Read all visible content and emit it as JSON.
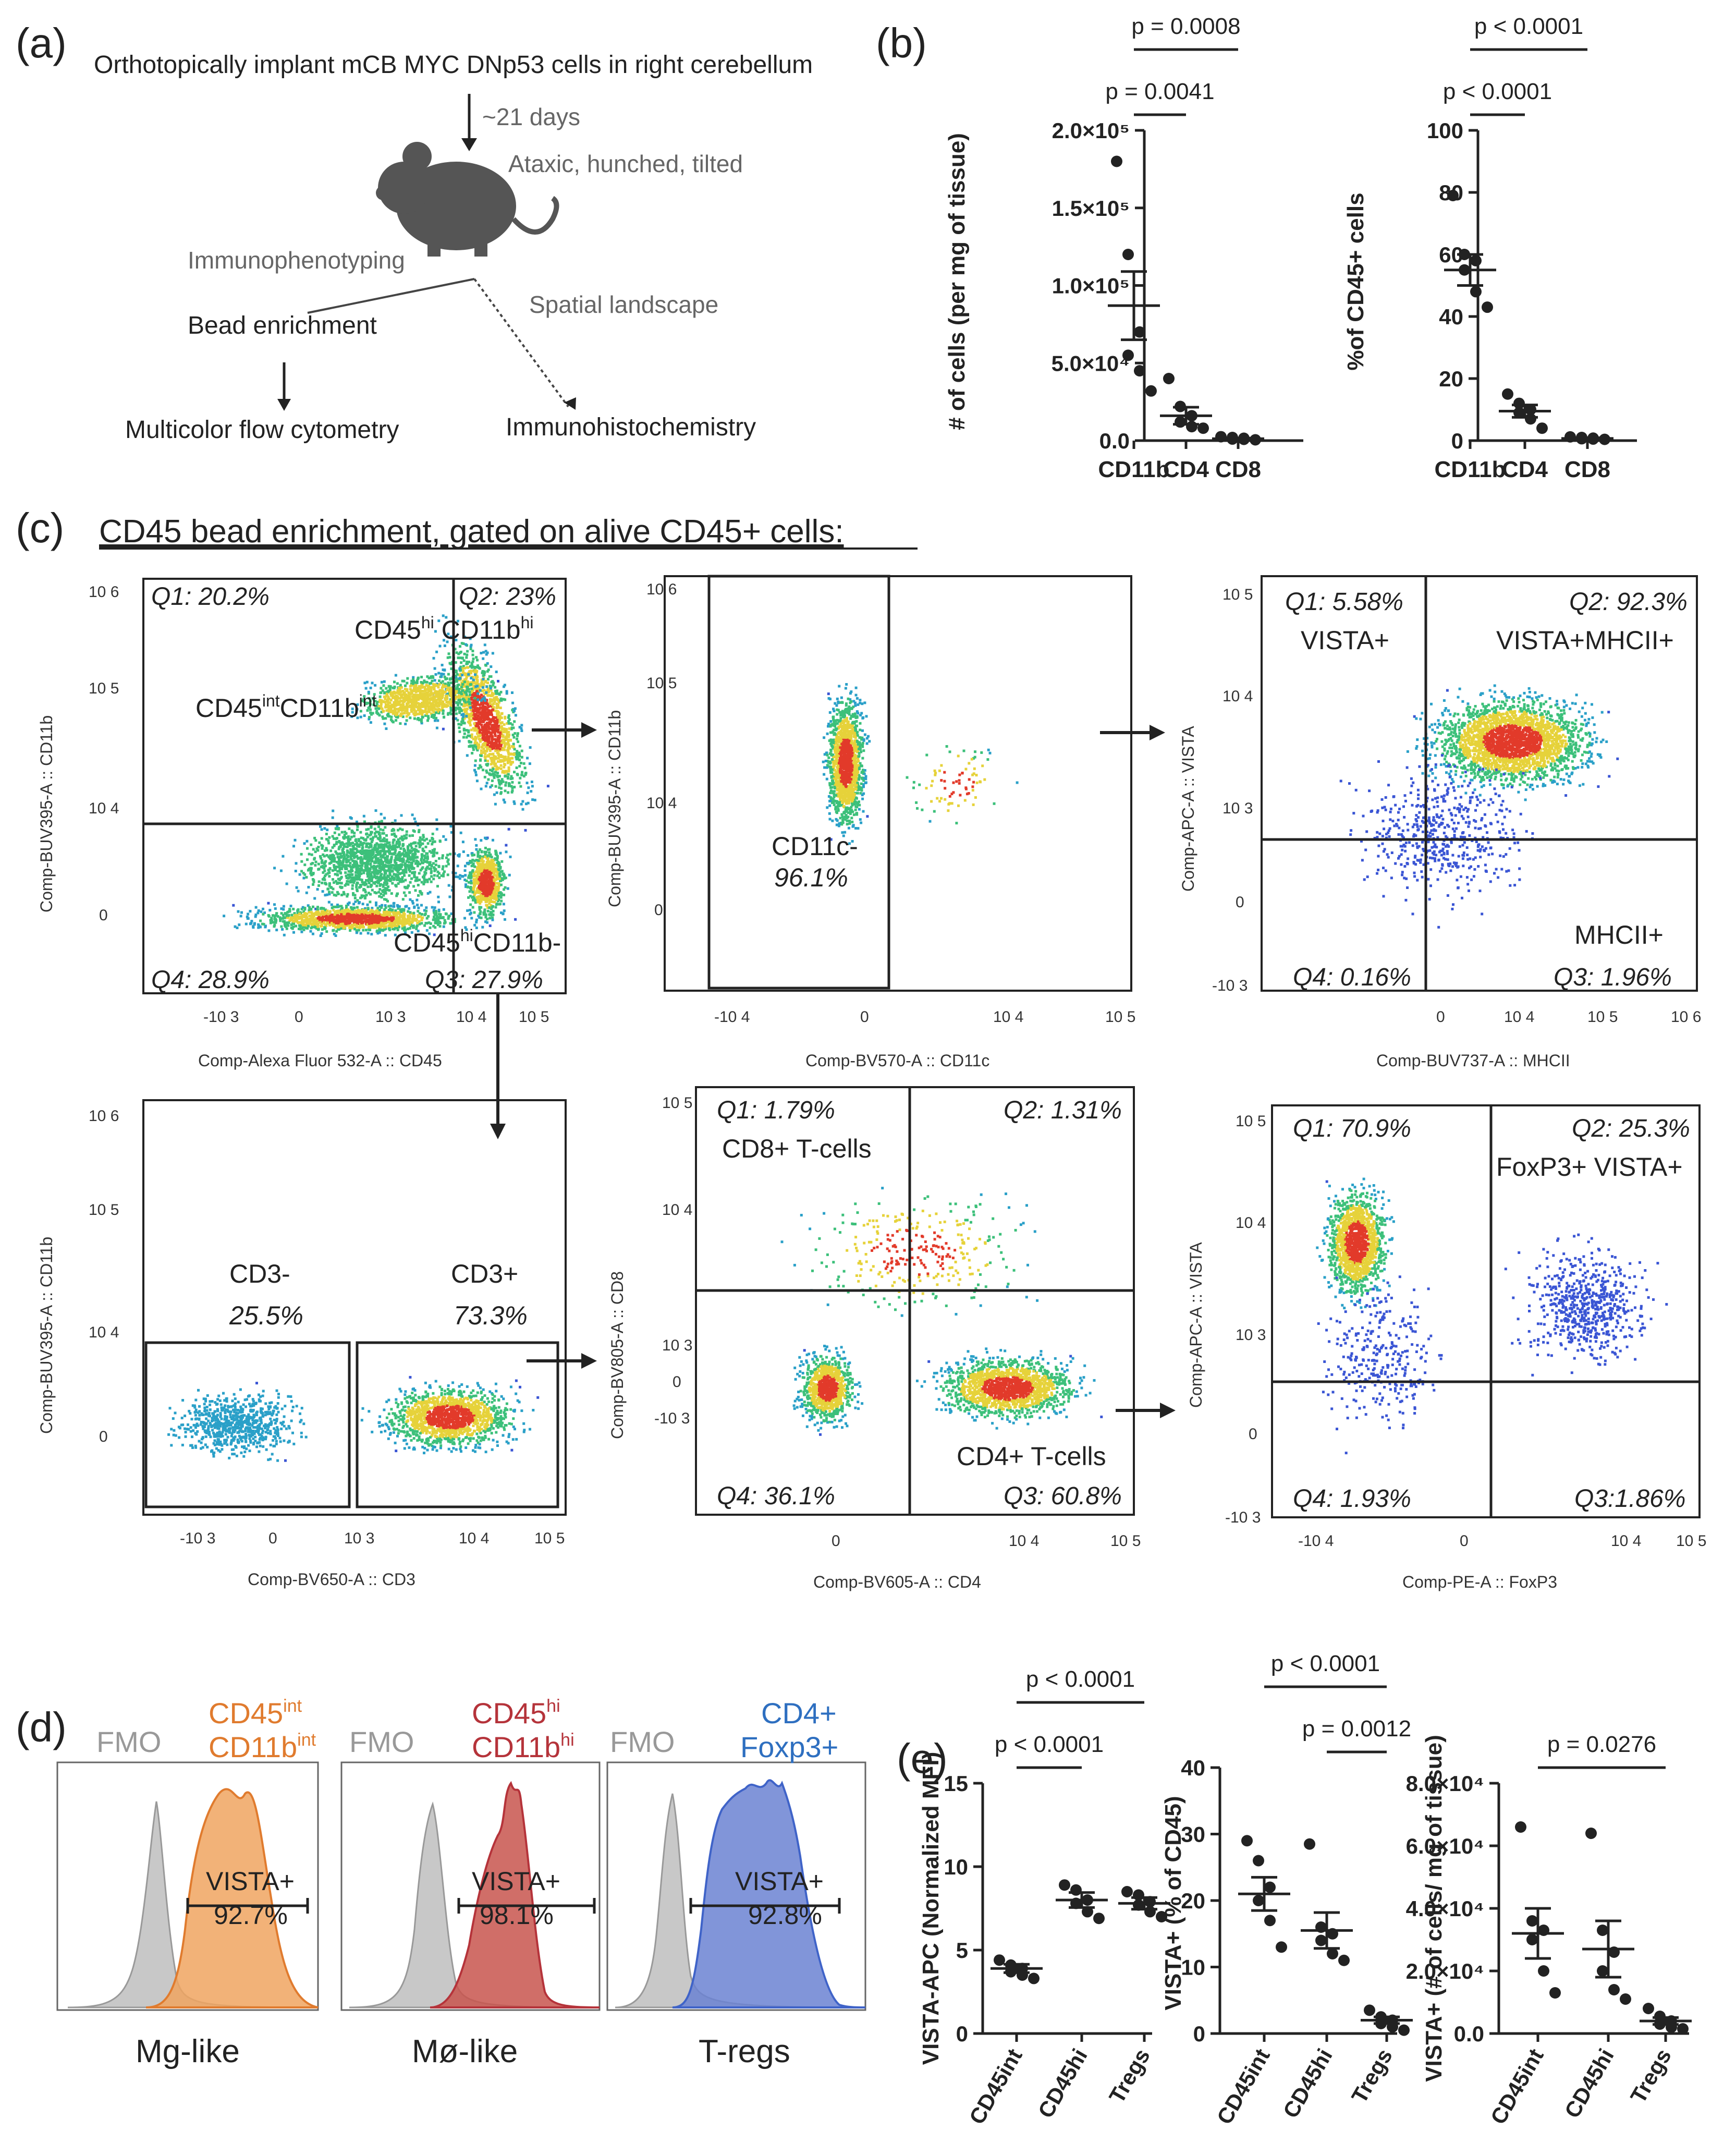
{
  "panel_labels": {
    "a": "(a)",
    "b": "(b)",
    "c": "(c)",
    "d": "(d)",
    "e": "(e)"
  },
  "panel_a": {
    "step1": "Orthotopically implant mCB MYC DNp53 cells in right cerebellum",
    "days": "~21 days",
    "symptoms": "Ataxic, hunched, tilted",
    "immuno": "Immunophenotyping",
    "bead": "Bead enrichment",
    "spatial": "Spatial landscape",
    "flow": "Multicolor flow cytometry",
    "ihc": "Immunohistochemistry"
  },
  "panel_c_title": "CD45 bead enrichment, gated on alive CD45+ cells:",
  "colors": {
    "dot": "#222222",
    "mg": "#e07b2e",
    "mo": "#b5333a",
    "treg": "#3f63c8",
    "fmo": "#bdbdbd",
    "tregtext": "#2e6fc0"
  },
  "flow_plots": {
    "p1": {
      "q1": "Q1: 20.2%",
      "q2": "Q2: 23%",
      "q3": "Q3: 27.9%",
      "q4": "Q4: 28.9%",
      "pop1_main": "CD45",
      "pop1_sup1": "hi",
      "pop1_mid": " CD11b",
      "pop1_sup2": "hi",
      "pop2_main": "CD45",
      "pop2_sup1": "int",
      "pop2_mid": "CD11b",
      "pop2_sup2": "int",
      "pop3_main": "CD45",
      "pop3_sup1": "hi",
      "pop3_mid": "CD11b-",
      "xtitle": "Comp-Alexa Fluor 532-A :: CD45",
      "ytitle": "Comp-BUV395-A :: CD11b",
      "xticks": [
        "-10 3",
        "0",
        "10 3",
        "10 4",
        "10 5"
      ],
      "yticks": [
        "10 6",
        "10 5",
        "10 4",
        "0"
      ]
    },
    "p2": {
      "gate": "CD11c-",
      "pct": "96.1%",
      "xtitle": "Comp-BV570-A :: CD11c",
      "ytitle": "Comp-BUV395-A :: CD11b",
      "xticks": [
        "-10 4",
        "0",
        "10 4",
        "10 5"
      ],
      "yticks": [
        "10 6",
        "10 5",
        "10 4",
        "0"
      ]
    },
    "p3": {
      "q1": "Q1: 5.58%",
      "q2": "Q2: 92.3%",
      "q3": "Q3: 1.96%",
      "q4": "Q4: 0.16%",
      "l1": "VISTA+",
      "l2": "VISTA+MHCII+",
      "l3": "MHCII+",
      "xtitle": "Comp-BUV737-A :: MHCII",
      "ytitle": "Comp-APC-A :: VISTA",
      "xticks": [
        "0",
        "10 4",
        "10 5",
        "10 6"
      ],
      "yticks": [
        "10 5",
        "10 4",
        "10 3",
        "0",
        "-10 3"
      ]
    },
    "p4": {
      "g1": "CD3-",
      "g1pct": "25.5%",
      "g2": "CD3+",
      "g2pct": "73.3%",
      "xtitle": "Comp-BV650-A :: CD3",
      "ytitle": "Comp-BUV395-A :: CD11b",
      "xticks": [
        "-10 3",
        "0",
        "10 3",
        "10 4",
        "10 5"
      ],
      "yticks": [
        "10 6",
        "10 5",
        "10 4",
        "0"
      ]
    },
    "p5": {
      "q1": "Q1: 1.79%",
      "q2": "Q2: 1.31%",
      "q3": "Q3: 60.8%",
      "q4": "Q4: 36.1%",
      "l1": "CD8+ T-cells",
      "l2": "CD4+ T-cells",
      "xtitle": "Comp-BV605-A :: CD4",
      "ytitle": "Comp-BV805-A :: CD8",
      "xticks": [
        "0",
        "10 4",
        "10 5"
      ],
      "yticks": [
        "10 5",
        "10 4",
        "10 3",
        "0",
        "-10 3"
      ]
    },
    "p6": {
      "q1": "Q1: 70.9%",
      "q2": "Q2: 25.3%",
      "q3": "Q3:1.86%",
      "q4": "Q4: 1.93%",
      "l1": "FoxP3+ VISTA+",
      "xtitle": "Comp-PE-A :: FoxP3",
      "ytitle": "Comp-APC-A :: VISTA",
      "xticks": [
        "-10 4",
        "0",
        "10 4",
        "10 5"
      ],
      "yticks": [
        "10 5",
        "10 4",
        "10 3",
        "0",
        "-10 3"
      ]
    }
  },
  "histograms": [
    {
      "fmo": "FMO",
      "pop_l1": "CD45",
      "pop_s1": "int",
      "pop_l2": "CD11b",
      "pop_s2": "int",
      "gate": "VISTA+",
      "pct": "92.7%",
      "label": "Mg-like"
    },
    {
      "fmo": "FMO",
      "pop_l1": "CD45",
      "pop_s1": "hi",
      "pop_l2": "CD11b",
      "pop_s2": "hi",
      "gate": "VISTA+",
      "pct": "98.1%",
      "label": "Mø-like"
    },
    {
      "fmo": "FMO",
      "pop_l1": "CD4+",
      "pop_s1": "",
      "pop_l2": "Foxp3+",
      "pop_s2": "",
      "gate": "VISTA+",
      "pct": "92.8%",
      "label": "T-regs"
    }
  ],
  "chart_data": [
    {
      "type": "scatter",
      "id": "b1",
      "categories": [
        "CD11b",
        "CD4",
        "CD8"
      ],
      "ylabel": "# of cells (per mg of tissue)",
      "ylim": [
        0,
        200000
      ],
      "yticks": [
        "0.0",
        "5.0×10⁴",
        "1.0×10⁵",
        "1.5×10⁵",
        "2.0×10⁵"
      ],
      "points": [
        [
          180000,
          120000,
          70000,
          55000,
          45000,
          32000
        ],
        [
          40000,
          22000,
          16000,
          12000,
          9000,
          8000
        ],
        [
          2500,
          2000,
          1500,
          1000,
          800,
          500
        ]
      ],
      "means": [
        87000,
        16000,
        1200
      ],
      "sems": [
        22000,
        5500,
        400
      ],
      "pvalues": [
        {
          "text": "p = 0.0041",
          "from": 0,
          "to": 1
        },
        {
          "text": "p = 0.0008",
          "from": 0,
          "to": 2
        }
      ]
    },
    {
      "type": "scatter",
      "id": "b2",
      "categories": [
        "CD11b",
        "CD4",
        "CD8"
      ],
      "ylabel": "%of CD45+ cells",
      "ylim": [
        0,
        100
      ],
      "yticks": [
        "0",
        "20",
        "40",
        "60",
        "80",
        "100"
      ],
      "points": [
        [
          79,
          60,
          58,
          55,
          48,
          43
        ],
        [
          15,
          12,
          10,
          9,
          7,
          4
        ],
        [
          1.2,
          1.0,
          0.8,
          0.6,
          0.5,
          0.4
        ]
      ],
      "means": [
        55,
        9.5,
        0.7
      ],
      "sems": [
        5,
        2,
        0.2
      ],
      "pvalues": [
        {
          "text": "p < 0.0001",
          "from": 0,
          "to": 1
        },
        {
          "text": "p < 0.0001",
          "from": 0,
          "to": 2
        }
      ]
    },
    {
      "type": "scatter",
      "id": "e1",
      "categories": [
        "CD45int",
        "CD45hi",
        "Tregs"
      ],
      "ylabel": "VISTA-APC (Normalized MFI)",
      "ylim": [
        0,
        15
      ],
      "yticks": [
        "0",
        "5",
        "10",
        "15"
      ],
      "points": [
        [
          4.4,
          4.1,
          3.9,
          3.7,
          3.5,
          3.3
        ],
        [
          8.9,
          8.6,
          8.0,
          7.8,
          7.3,
          6.9
        ],
        [
          8.5,
          8.3,
          7.9,
          7.7,
          7.3,
          7.0
        ]
      ],
      "means": [
        3.9,
        8.0,
        7.8
      ],
      "sems": [
        0.25,
        0.45,
        0.35
      ],
      "pvalues": [
        {
          "text": "p < 0.0001",
          "from": 0,
          "to": 1
        },
        {
          "text": "p < 0.0001",
          "from": 0,
          "to": 2
        }
      ]
    },
    {
      "type": "scatter",
      "id": "e2",
      "categories": [
        "CD45int",
        "CD45hi",
        "Tregs"
      ],
      "ylabel": "VISTA+ (% of CD45)",
      "ylim": [
        0,
        40
      ],
      "yticks": [
        "0",
        "10",
        "20",
        "30",
        "40"
      ],
      "points": [
        [
          29,
          26,
          22,
          20,
          17,
          13
        ],
        [
          28.5,
          16,
          15,
          14,
          12,
          11
        ],
        [
          3.5,
          2.5,
          2,
          1.5,
          1,
          0.5
        ]
      ],
      "means": [
        21,
        15.5,
        2
      ],
      "sems": [
        2.5,
        2.7,
        0.5
      ],
      "pvalues": [
        {
          "text": "p = 0.0012",
          "from": 1,
          "to": 2
        },
        {
          "text": "p < 0.0001",
          "from": 0,
          "to": 2
        }
      ]
    },
    {
      "type": "scatter",
      "id": "e3",
      "categories": [
        "CD45int",
        "CD45hi",
        "Tregs"
      ],
      "ylabel": "VISTA+ (# of cells/ mg of tissue)",
      "ylim": [
        0,
        80000
      ],
      "yticks": [
        "0.0",
        "2.0×10⁴",
        "4.0×10⁴",
        "6.0×10⁴",
        "8.0×10⁴"
      ],
      "points": [
        [
          66000,
          36000,
          33000,
          30000,
          20000,
          13000
        ],
        [
          64000,
          33000,
          26000,
          20000,
          14000,
          11000
        ],
        [
          8000,
          5500,
          4000,
          3000,
          2000,
          1500
        ]
      ],
      "means": [
        32000,
        27000,
        4000
      ],
      "sems": [
        8000,
        9000,
        1100
      ],
      "pvalues": [
        {
          "text": "p = 0.0276",
          "from": 0,
          "to": 2
        }
      ]
    }
  ]
}
